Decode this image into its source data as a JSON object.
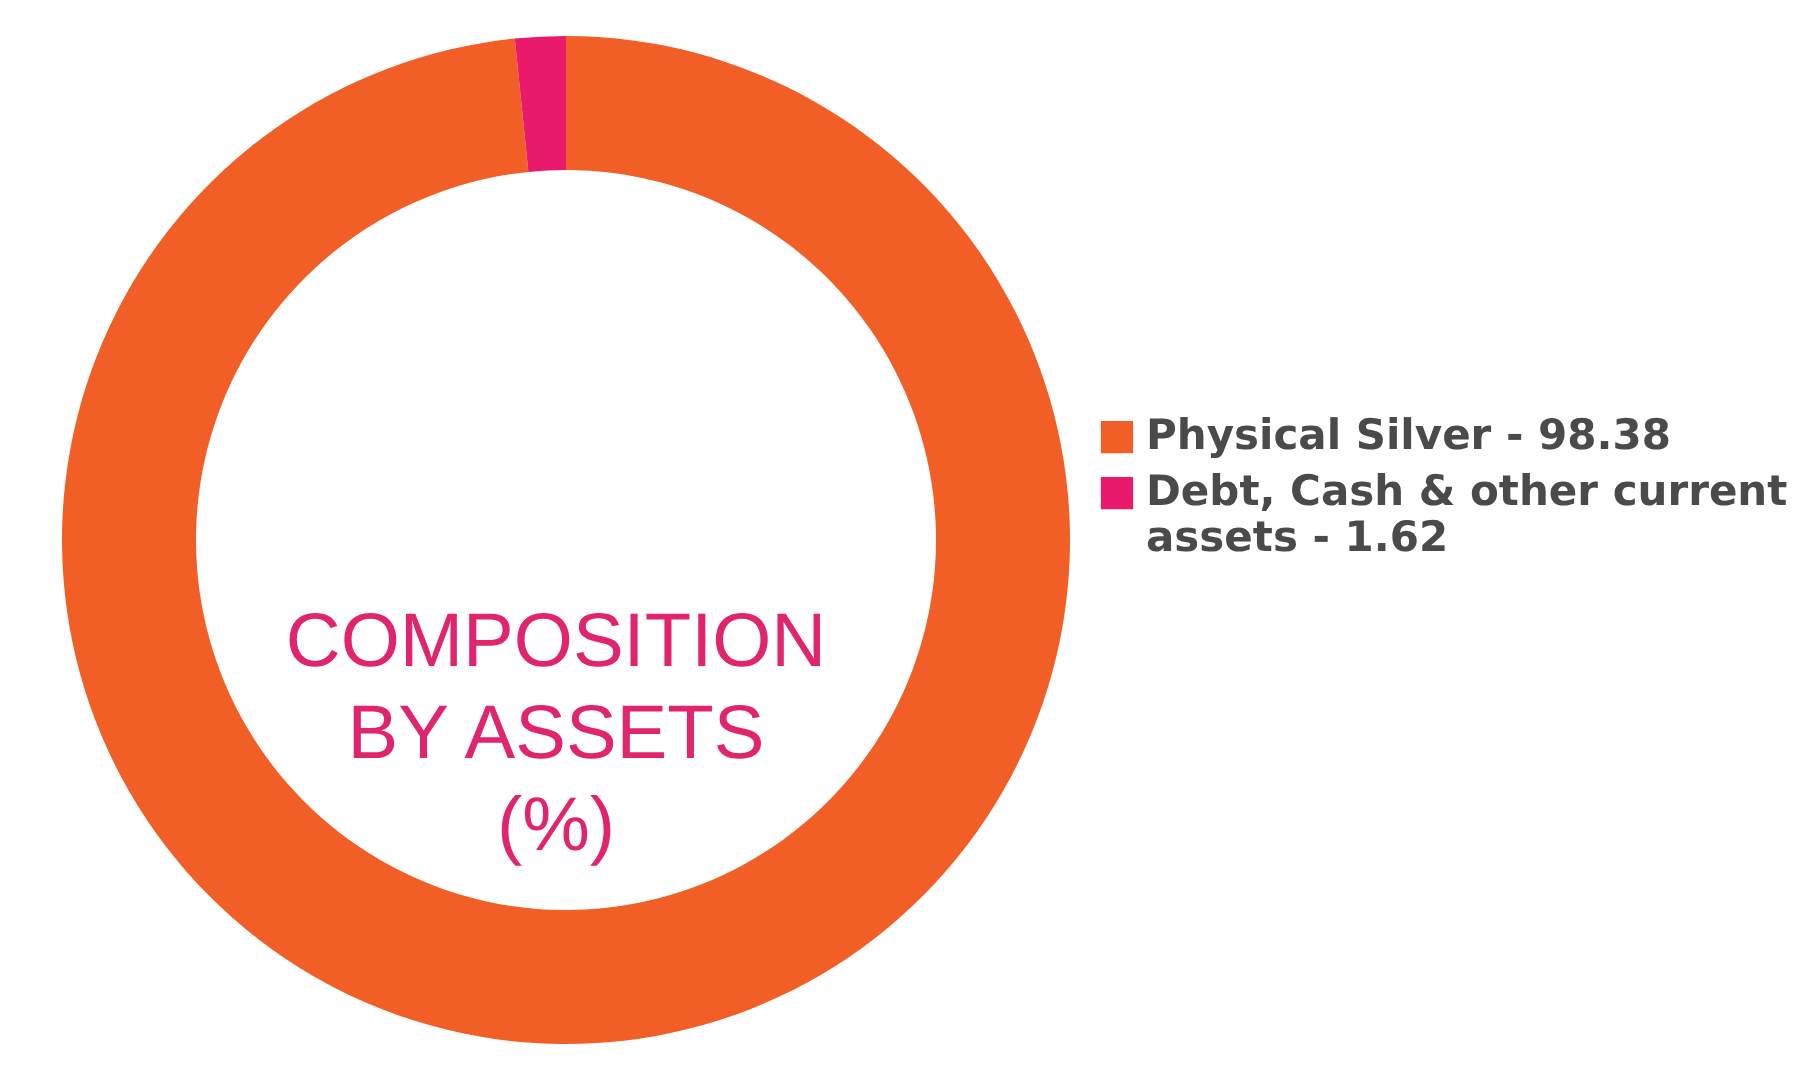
{
  "chart_data": {
    "type": "donut",
    "title": "COMPOSITION BY ASSETS (%)",
    "categories": [
      "Physical Silver - 98.38",
      "Debt, Cash & other current assets - 1.62"
    ],
    "values": [
      98.38,
      1.62
    ],
    "colors": [
      "#f15f27",
      "#e9196c"
    ],
    "legend": "right"
  }
}
